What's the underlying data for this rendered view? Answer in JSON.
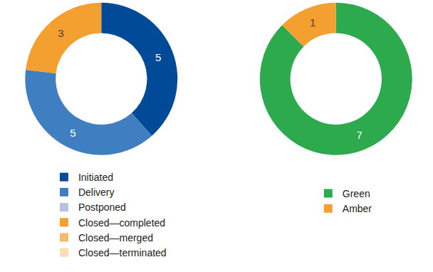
{
  "chart_data": [
    {
      "type": "pie",
      "categories": [
        "Initiated",
        "Delivery",
        "Postponed",
        "Closed—completed",
        "Closed—merged",
        "Closed—terminated"
      ],
      "values": [
        5,
        5,
        0,
        3,
        0,
        0
      ],
      "colors": [
        "#004a98",
        "#3f7fc1",
        "#b4c3e0",
        "#f4a030",
        "#f6ba68",
        "#fbdcb4"
      ],
      "data_labels": true,
      "legend": "bottom"
    },
    {
      "type": "pie",
      "categories": [
        "Green",
        "Amber"
      ],
      "values": [
        7,
        1
      ],
      "colors": [
        "#2eaa4e",
        "#f4a030"
      ],
      "data_labels": true,
      "legend": "bottom"
    }
  ]
}
